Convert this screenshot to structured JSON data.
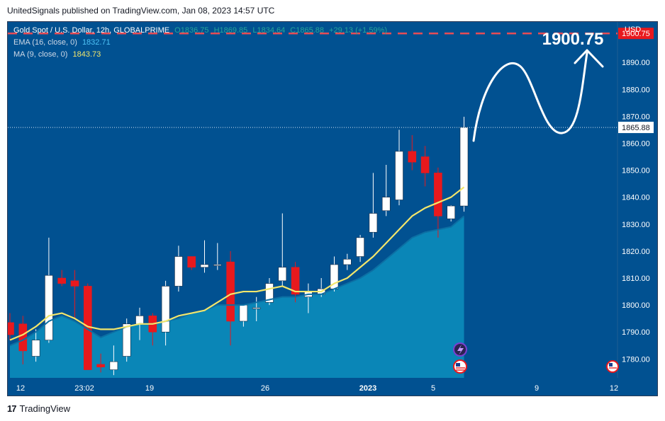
{
  "header": {
    "published_text": "UnitedSignals published on TradingView.com, Jan 08, 2023 14:57 UTC"
  },
  "footer": {
    "brand": "TradingView",
    "logo_glyph": "17"
  },
  "legend": {
    "symbol": "Gold Spot / U.S. Dollar, 12h, GLOBALPRIME",
    "open": "O1836.75",
    "high": "H1869.85",
    "low": "L1834.64",
    "close": "C1865.88",
    "change": "+29.13 (+1.59%)",
    "ema_label": "EMA (16, close, 0)",
    "ema_value": "1832.71",
    "ma_label": "MA (9, close, 0)",
    "ma_value": "1843.73"
  },
  "colors": {
    "background": "#015191",
    "area_fill": "#0a86b7",
    "up_body": "#ffffff",
    "down_body": "#e8191d",
    "ma_line": "#f3e66b",
    "target_line": "#e74c55",
    "price_badge": "#ffffff",
    "target_badge": "#e8191d"
  },
  "chart_data": {
    "type": "candlestick",
    "title": "Gold Spot / U.S. Dollar, 12h, GLOBALPRIME",
    "currency": "USD",
    "ylim": [
      1773,
      1905
    ],
    "y_ticks": [
      1780,
      1790,
      1800,
      1810,
      1820,
      1830,
      1840,
      1850,
      1860,
      1870,
      1880,
      1890
    ],
    "y_tick_labels": [
      "1780.00",
      "1790.00",
      "1800.00",
      "1810.00",
      "1820.00",
      "1830.00",
      "1840.00",
      "1850.00",
      "1860.00",
      "1870.00",
      "1880.00",
      "1890.00"
    ],
    "x_tick_labels": [
      "12",
      "23:02",
      "19",
      "26",
      "2023",
      "5",
      "9",
      "12"
    ],
    "current_price": 1865.88,
    "current_price_label": "1865.88",
    "target_price": 1900.75,
    "target_price_label": "1900.75",
    "annotation": "1900.75",
    "candles": [
      {
        "o": 1793.5,
        "h": 1797,
        "l": 1787,
        "c": 1789
      },
      {
        "o": 1793,
        "h": 1796,
        "l": 1778,
        "c": 1783
      },
      {
        "o": 1781,
        "h": 1791,
        "l": 1779,
        "c": 1787
      },
      {
        "o": 1787,
        "h": 1825,
        "l": 1786,
        "c": 1811
      },
      {
        "o": 1810,
        "h": 1813,
        "l": 1807,
        "c": 1808
      },
      {
        "o": 1809,
        "h": 1813,
        "l": 1795,
        "c": 1807
      },
      {
        "o": 1807,
        "h": 1808,
        "l": 1776,
        "c": 1776
      },
      {
        "o": 1778,
        "h": 1782,
        "l": 1775,
        "c": 1777
      },
      {
        "o": 1776,
        "h": 1785,
        "l": 1774,
        "c": 1779
      },
      {
        "o": 1781,
        "h": 1795,
        "l": 1779,
        "c": 1793
      },
      {
        "o": 1793,
        "h": 1799,
        "l": 1787,
        "c": 1796
      },
      {
        "o": 1796,
        "h": 1797,
        "l": 1785,
        "c": 1790
      },
      {
        "o": 1790,
        "h": 1809,
        "l": 1785,
        "c": 1807
      },
      {
        "o": 1807,
        "h": 1822,
        "l": 1805,
        "c": 1818
      },
      {
        "o": 1818,
        "h": 1818,
        "l": 1813,
        "c": 1814
      },
      {
        "o": 1814,
        "h": 1824,
        "l": 1812,
        "c": 1815
      },
      {
        "o": 1815,
        "h": 1823,
        "l": 1813,
        "c": 1815
      },
      {
        "o": 1816,
        "h": 1820,
        "l": 1785,
        "c": 1794
      },
      {
        "o": 1794,
        "h": 1800,
        "l": 1792,
        "c": 1800
      },
      {
        "o": 1799,
        "h": 1803,
        "l": 1794,
        "c": 1799
      },
      {
        "o": 1801,
        "h": 1810,
        "l": 1800,
        "c": 1808
      },
      {
        "o": 1809,
        "h": 1834,
        "l": 1807,
        "c": 1814
      },
      {
        "o": 1814,
        "h": 1816,
        "l": 1801,
        "c": 1804
      },
      {
        "o": 1803,
        "h": 1808,
        "l": 1797,
        "c": 1805
      },
      {
        "o": 1804,
        "h": 1810,
        "l": 1803,
        "c": 1806
      },
      {
        "o": 1806,
        "h": 1818,
        "l": 1805,
        "c": 1815
      },
      {
        "o": 1815,
        "h": 1819,
        "l": 1813,
        "c": 1817
      },
      {
        "o": 1818,
        "h": 1826,
        "l": 1816,
        "c": 1825
      },
      {
        "o": 1827,
        "h": 1849,
        "l": 1825,
        "c": 1834
      },
      {
        "o": 1835,
        "h": 1852,
        "l": 1833,
        "c": 1840
      },
      {
        "o": 1839,
        "h": 1865,
        "l": 1837,
        "c": 1857
      },
      {
        "o": 1857,
        "h": 1863,
        "l": 1850,
        "c": 1853
      },
      {
        "o": 1855,
        "h": 1859,
        "l": 1844,
        "c": 1849
      },
      {
        "o": 1849,
        "h": 1851,
        "l": 1825,
        "c": 1833
      },
      {
        "o": 1832,
        "h": 1837,
        "l": 1831,
        "c": 1836.75
      },
      {
        "o": 1836.75,
        "h": 1869.85,
        "l": 1834.64,
        "c": 1865.88
      }
    ],
    "ema16": [
      1785,
      1787,
      1790,
      1794,
      1796,
      1794,
      1791,
      1788,
      1790,
      1792,
      1793,
      1793,
      1794,
      1795,
      1797,
      1798,
      1800,
      1800,
      1800,
      1801,
      1802,
      1803,
      1803,
      1804,
      1804,
      1806,
      1808,
      1810,
      1813,
      1817,
      1821,
      1825,
      1827,
      1828,
      1829,
      1833
    ],
    "ma9": [
      1787,
      1789,
      1792,
      1796,
      1797,
      1795,
      1792,
      1791,
      1791,
      1792,
      1793,
      1793,
      1794,
      1796,
      1797,
      1798,
      1801,
      1804,
      1805,
      1805,
      1806,
      1807,
      1805,
      1805,
      1805,
      1808,
      1810,
      1814,
      1818,
      1823,
      1828,
      1833,
      1836,
      1838,
      1840,
      1843.73
    ]
  }
}
